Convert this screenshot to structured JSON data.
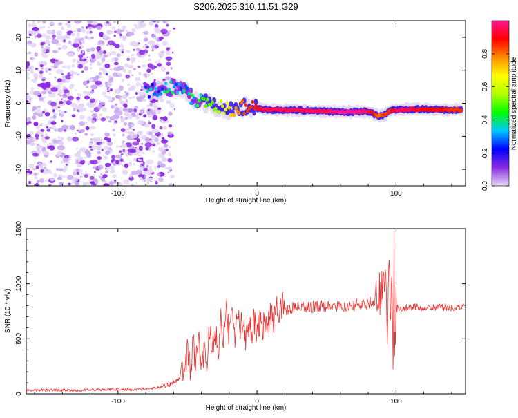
{
  "title": "S206.2025.310.11.51.G29",
  "chart_data": [
    {
      "type": "heatmap",
      "xlabel": "Height of straight line (km)",
      "ylabel": "Frequency (Hz)",
      "xlim": [
        -166,
        150
      ],
      "ylim": [
        -25,
        25
      ],
      "xticks": [
        -100,
        0,
        100
      ],
      "yticks": [
        -20,
        -10,
        0,
        10,
        20
      ],
      "colorbar": {
        "label": "Normalized spectral amplitude",
        "range": [
          0,
          1
        ],
        "ticks": [
          0.0,
          0.2,
          0.4,
          0.6,
          0.8
        ],
        "colors": [
          "#e6d8f4",
          "#8a2be2",
          "#0000ff",
          "#00c8ff",
          "#00ff00",
          "#b4ff00",
          "#ffff00",
          "#ff8c00",
          "#ff0000",
          "#ff1493"
        ]
      },
      "ridge": {
        "x": [
          -80,
          -72,
          -65,
          -58,
          -52,
          -48,
          -44,
          -40,
          -36,
          -32,
          -28,
          -24,
          -20,
          -16,
          -12,
          -8,
          -4,
          0,
          5,
          10,
          20,
          30,
          40,
          50,
          60,
          70,
          80,
          85,
          88,
          92,
          95,
          100,
          110,
          120,
          130,
          140,
          148
        ],
        "frequency_hz": [
          3.5,
          4.0,
          4.5,
          5.0,
          4.0,
          2.0,
          1.0,
          0.5,
          0.0,
          -0.5,
          -1.0,
          -1.5,
          -1.8,
          -2.0,
          -1.5,
          -1.0,
          -1.2,
          -1.5,
          -1.8,
          -2.0,
          -2.0,
          -2.1,
          -2.3,
          -2.5,
          -2.6,
          -2.6,
          -2.5,
          -3.5,
          -3.8,
          -3.5,
          -2.5,
          -2.0,
          -1.8,
          -1.8,
          -1.9,
          -2.0,
          -2.1
        ],
        "amplitude": [
          0.35,
          0.35,
          0.4,
          0.4,
          0.4,
          0.4,
          0.45,
          0.45,
          0.5,
          0.5,
          0.55,
          0.6,
          0.7,
          0.75,
          0.8,
          0.85,
          0.85,
          0.9,
          0.95,
          0.95,
          0.95,
          0.95,
          0.95,
          0.95,
          1.0,
          1.0,
          0.95,
          0.85,
          0.8,
          0.85,
          0.85,
          0.95,
          0.95,
          0.9,
          0.9,
          0.85,
          0.85
        ]
      }
    },
    {
      "type": "line",
      "xlabel": "Height of straight line (km)",
      "ylabel": "SNR (10 * v/v)",
      "xlim": [
        -166,
        150
      ],
      "ylim": [
        0,
        1500
      ],
      "xticks": [
        -100,
        0,
        100
      ],
      "yticks": [
        0,
        500,
        1000,
        1500
      ],
      "series": [
        {
          "color": "#e8302e",
          "x": [
            -166,
            -150,
            -130,
            -110,
            -90,
            -80,
            -75,
            -70,
            -65,
            -60,
            -57,
            -54,
            -52,
            -50,
            -48,
            -46,
            -44,
            -42,
            -40,
            -38,
            -36,
            -34,
            -32,
            -30,
            -28,
            -26,
            -24,
            -22,
            -20,
            -18,
            -16,
            -14,
            -12,
            -10,
            -8,
            -6,
            -4,
            -2,
            0,
            2,
            4,
            6,
            8,
            10,
            12,
            14,
            16,
            18,
            20,
            25,
            30,
            40,
            50,
            60,
            70,
            75,
            80,
            85,
            88,
            90,
            92,
            94,
            95,
            96,
            97,
            98,
            98.5,
            99,
            100,
            102,
            105,
            110,
            120,
            130,
            140,
            150
          ],
          "snr": [
            30,
            35,
            30,
            40,
            40,
            45,
            50,
            60,
            75,
            95,
            130,
            180,
            240,
            380,
            200,
            450,
            300,
            520,
            240,
            420,
            330,
            580,
            420,
            640,
            380,
            700,
            480,
            760,
            500,
            760,
            520,
            700,
            550,
            720,
            500,
            640,
            560,
            680,
            520,
            640,
            580,
            700,
            600,
            760,
            680,
            800,
            740,
            820,
            760,
            780,
            800,
            790,
            800,
            790,
            800,
            820,
            830,
            850,
            900,
            1000,
            1050,
            600,
            1180,
            500,
            950,
            200,
            1520,
            350,
            760,
            790,
            780,
            790,
            780,
            790,
            780,
            790
          ]
        }
      ]
    }
  ]
}
